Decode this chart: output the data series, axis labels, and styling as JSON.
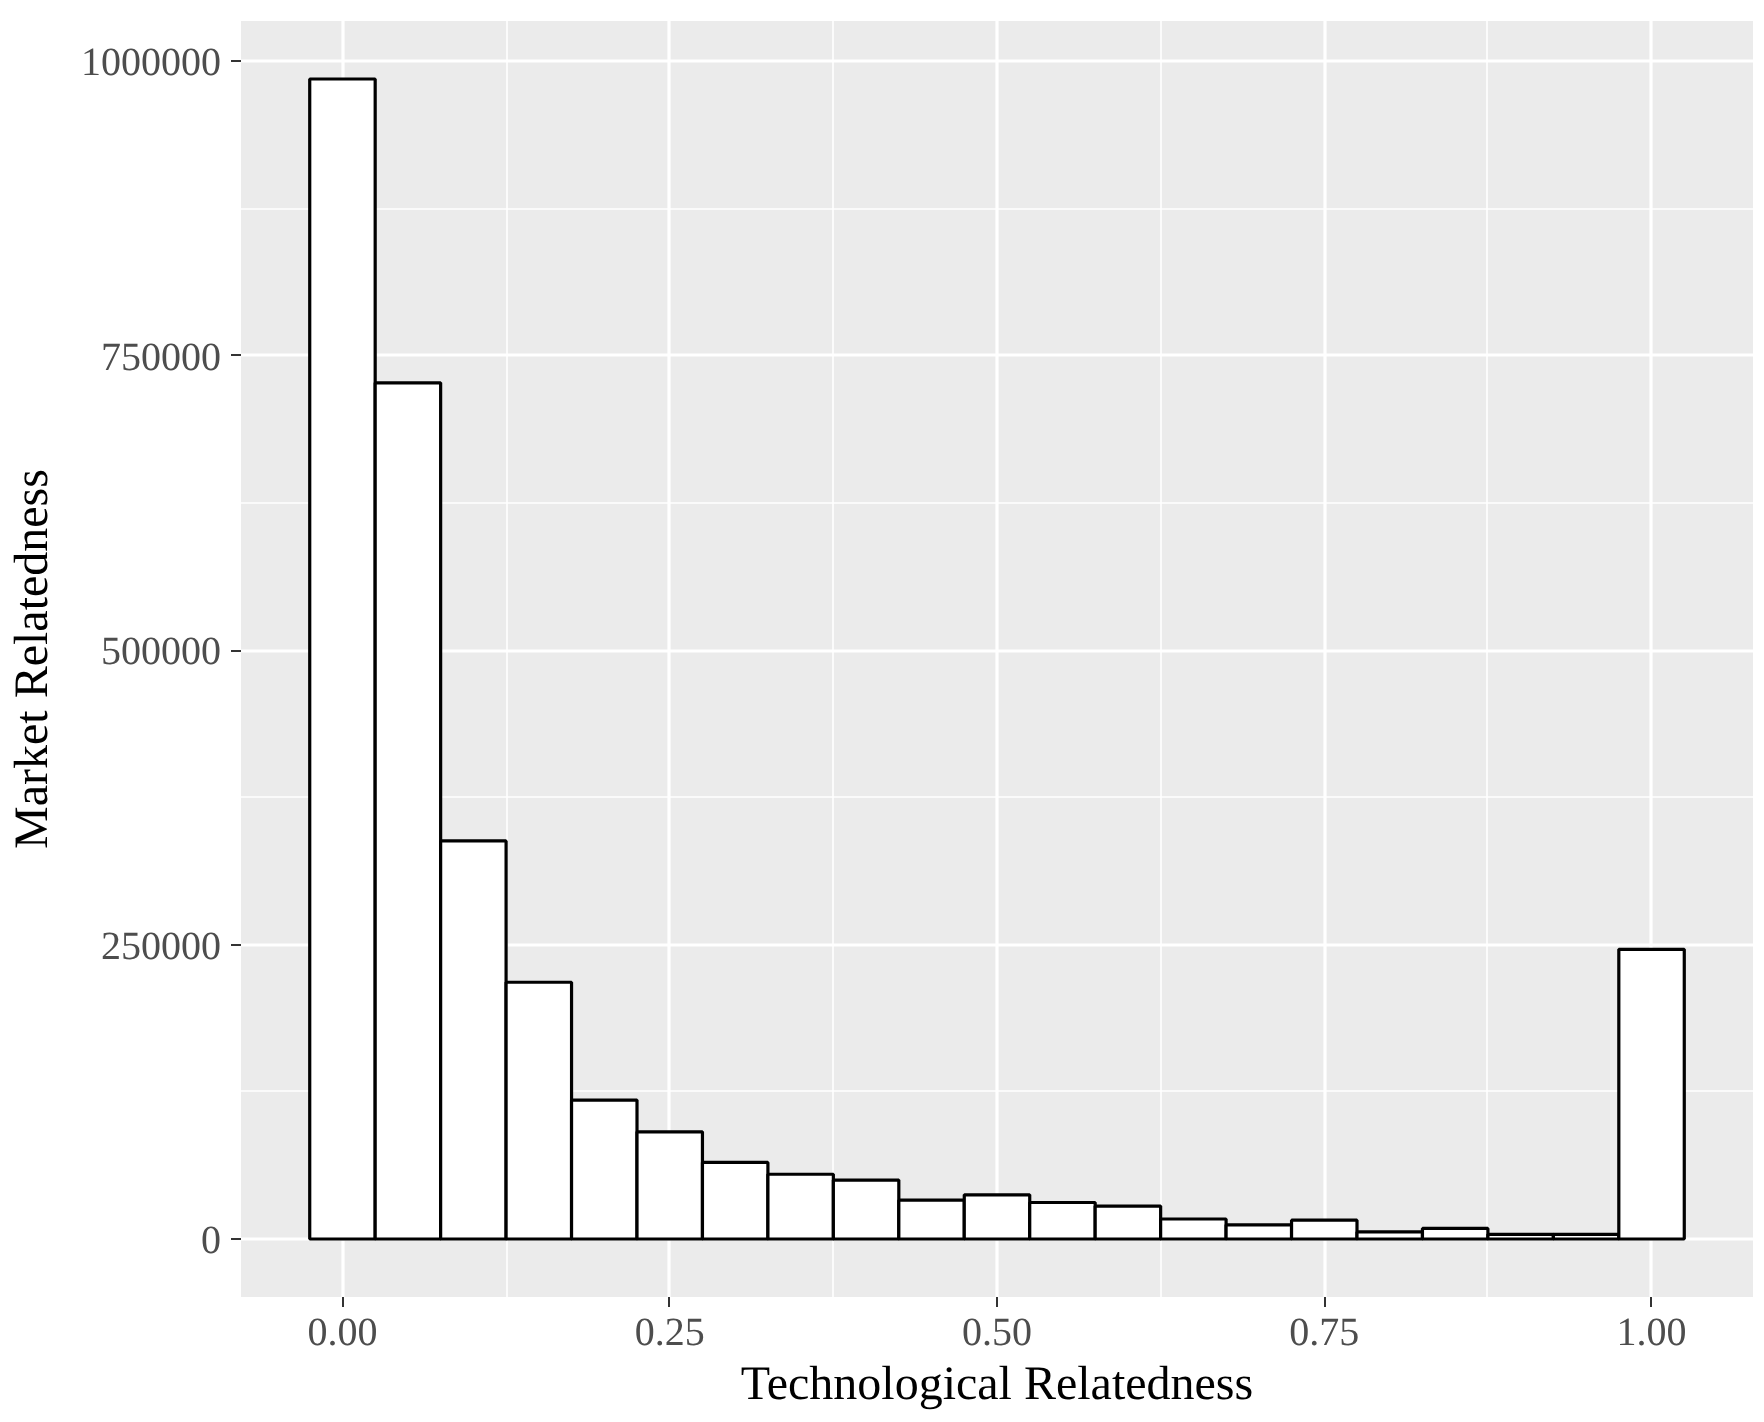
{
  "chart_data": {
    "type": "histogram",
    "xlabel": "Technological Relatedness",
    "ylabel": "Market Relatedness",
    "bins": [
      -0.025,
      0.025,
      0.075,
      0.125,
      0.175,
      0.225,
      0.275,
      0.325,
      0.375,
      0.425,
      0.475,
      0.525,
      0.575,
      0.625,
      0.675,
      0.725,
      0.775,
      0.825,
      0.875,
      0.925,
      0.975,
      1.025
    ],
    "values": [
      985000,
      727000,
      338000,
      218000,
      118000,
      91000,
      65000,
      55000,
      50000,
      33000,
      37500,
      31000,
      28000,
      17000,
      12000,
      16000,
      6000,
      9000,
      4000,
      4000,
      246000
    ],
    "color": "#ffffff",
    "xlim": [
      -0.0775,
      1.0775
    ],
    "ylim": [
      -49250,
      1034250
    ],
    "xticks": [
      {
        "value": 0,
        "label": "0.00"
      },
      {
        "value": 0.25,
        "label": "0.25"
      },
      {
        "value": 0.5,
        "label": "0.50"
      },
      {
        "value": 0.75,
        "label": "0.75"
      },
      {
        "value": 1,
        "label": "1.00"
      }
    ],
    "yticks": [
      0,
      250000,
      500000,
      750000,
      1000000
    ],
    "grid": true
  }
}
